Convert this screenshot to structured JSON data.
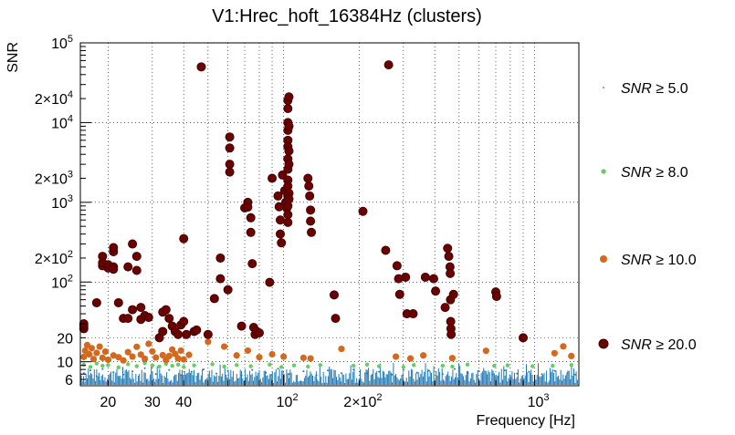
{
  "chart_data": {
    "type": "scatter",
    "title": "V1:Hrec_hoft_16384Hz (clusters)",
    "xlabel": "Frequency [Hz]",
    "ylabel": "SNR",
    "xscale": "log",
    "yscale": "log",
    "xlim": [
      15.5,
      1500
    ],
    "ylim": [
      5,
      100000
    ],
    "grid": true,
    "legend_position": "right",
    "x_ticks": [
      {
        "value": 20,
        "label": "20"
      },
      {
        "value": 30,
        "label": "30"
      },
      {
        "value": 40,
        "label": "40"
      },
      {
        "value": 100,
        "label": "10",
        "sup": "2"
      },
      {
        "value": 200,
        "label": "2×10",
        "sup": "2"
      },
      {
        "value": 1000,
        "label": "10",
        "sup": "3"
      }
    ],
    "y_ticks": [
      {
        "value": 6,
        "label": "6"
      },
      {
        "value": 10,
        "label": "10"
      },
      {
        "value": 20,
        "label": "20"
      },
      {
        "value": 100,
        "label": "10",
        "sup": "2"
      },
      {
        "value": 200,
        "label": "2×10",
        "sup": "2"
      },
      {
        "value": 1000,
        "label": "10",
        "sup": "3"
      },
      {
        "value": 2000,
        "label": "2×10",
        "sup": "3"
      },
      {
        "value": 10000,
        "label": "10",
        "sup": "4"
      },
      {
        "value": 20000,
        "label": "2×10",
        "sup": "4"
      },
      {
        "value": 100000,
        "label": "10",
        "sup": "5"
      }
    ],
    "series": [
      {
        "name": "SNR ≥ 5.0",
        "legend_prefix": "SNR",
        "legend_suffix": " ≥ 5.0",
        "color": "#1f78b4",
        "marker": "dot",
        "points": [
          [
            16,
            7.2
          ],
          [
            17,
            7.8
          ],
          [
            18,
            6.6
          ],
          [
            19,
            8.1
          ],
          [
            21,
            7.4
          ],
          [
            23,
            6.9
          ],
          [
            25,
            7.6
          ],
          [
            28,
            8.3
          ],
          [
            31,
            7.0
          ],
          [
            35,
            7.9
          ],
          [
            39,
            6.8
          ],
          [
            43,
            7.5
          ],
          [
            48,
            8.0
          ],
          [
            54,
            7.1
          ],
          [
            60,
            7.7
          ],
          [
            68,
            6.7
          ],
          [
            75,
            7.9
          ],
          [
            85,
            7.3
          ],
          [
            95,
            8.2
          ],
          [
            105,
            7.0
          ],
          [
            120,
            7.6
          ],
          [
            135,
            6.8
          ],
          [
            150,
            7.8
          ],
          [
            170,
            7.2
          ],
          [
            190,
            8.0
          ],
          [
            215,
            7.1
          ],
          [
            240,
            7.5
          ],
          [
            270,
            6.9
          ],
          [
            300,
            7.9
          ],
          [
            340,
            7.3
          ],
          [
            380,
            7.7
          ],
          [
            430,
            7.0
          ],
          [
            480,
            8.1
          ],
          [
            540,
            7.2
          ],
          [
            600,
            7.6
          ],
          [
            680,
            6.9
          ],
          [
            760,
            7.8
          ],
          [
            850,
            7.1
          ],
          [
            950,
            7.5
          ],
          [
            1070,
            7.0
          ],
          [
            1200,
            7.7
          ],
          [
            1350,
            7.2
          ],
          [
            1450,
            6.9
          ]
        ]
      },
      {
        "name": "SNR ≥ 8.0",
        "legend_prefix": "SNR",
        "legend_suffix": " ≥ 8.0",
        "color": "#66cc66",
        "marker": "small",
        "points": [
          [
            16,
            9.2
          ],
          [
            17,
            8.6
          ],
          [
            18,
            9.5
          ],
          [
            19,
            8.9
          ],
          [
            20,
            9.1
          ],
          [
            22,
            8.5
          ],
          [
            24,
            9.3
          ],
          [
            26,
            8.8
          ],
          [
            28,
            9.6
          ],
          [
            30,
            9.0
          ],
          [
            32,
            8.7
          ],
          [
            34,
            9.4
          ],
          [
            36,
            8.9
          ],
          [
            38,
            9.2
          ],
          [
            40,
            8.6
          ],
          [
            44,
            9.0
          ],
          [
            52,
            9.3
          ],
          [
            58,
            8.7
          ],
          [
            65,
            9.1
          ],
          [
            74,
            8.8
          ],
          [
            88,
            9.2
          ],
          [
            98,
            8.6
          ],
          [
            110,
            9.0
          ],
          [
            125,
            8.7
          ],
          [
            140,
            9.1
          ],
          [
            190,
            8.9
          ],
          [
            215,
            9.2
          ],
          [
            240,
            8.8
          ],
          [
            300,
            8.6
          ],
          [
            330,
            9.1
          ],
          [
            430,
            8.9
          ],
          [
            470,
            8.7
          ],
          [
            540,
            9.2
          ],
          [
            690,
            8.9
          ],
          [
            780,
            9.0
          ],
          [
            980,
            8.8
          ],
          [
            1180,
            8.9
          ],
          [
            1400,
            9.1
          ]
        ]
      },
      {
        "name": "SNR ≥ 10.0",
        "legend_prefix": "SNR",
        "legend_suffix": " ≥ 10.0",
        "color": "#d2691e",
        "marker": "medium",
        "points": [
          [
            16,
            11.5
          ],
          [
            16.2,
            13.8
          ],
          [
            16.5,
            16.2
          ],
          [
            16.8,
            12.4
          ],
          [
            17.2,
            14.8
          ],
          [
            17.5,
            10.8
          ],
          [
            18,
            12.9
          ],
          [
            18.5,
            15.5
          ],
          [
            19,
            11.2
          ],
          [
            19.5,
            13.4
          ],
          [
            20,
            10.6
          ],
          [
            21,
            12.0
          ],
          [
            22,
            11.4
          ],
          [
            23,
            10.4
          ],
          [
            24,
            13.2
          ],
          [
            25,
            11.6
          ],
          [
            26,
            15.4
          ],
          [
            27,
            12.3
          ],
          [
            28,
            10.9
          ],
          [
            29,
            16.8
          ],
          [
            30,
            13.5
          ],
          [
            31,
            11.3
          ],
          [
            33,
            12.1
          ],
          [
            34,
            10.5
          ],
          [
            35,
            11.8
          ],
          [
            36,
            14.2
          ],
          [
            37,
            12.5
          ],
          [
            38,
            11.0
          ],
          [
            39,
            13.8
          ],
          [
            40,
            10.7
          ],
          [
            42,
            12.2
          ],
          [
            50,
            17.8
          ],
          [
            58,
            15.5
          ],
          [
            65,
            12.0
          ],
          [
            72,
            13.8
          ],
          [
            80,
            11.4
          ],
          [
            90,
            12.4
          ],
          [
            100,
            11.6
          ],
          [
            120,
            11.2
          ],
          [
            128,
            11.0
          ],
          [
            170,
            14.5
          ],
          [
            280,
            11.6
          ],
          [
            320,
            11.0
          ],
          [
            360,
            12.0
          ],
          [
            470,
            11.1
          ],
          [
            640,
            13.7
          ],
          [
            1200,
            12.8
          ],
          [
            1300,
            15.6
          ],
          [
            1400,
            11.8
          ]
        ]
      },
      {
        "name": "SNR ≥ 20.0",
        "legend_prefix": "SNR",
        "legend_suffix": " ≥ 20.0",
        "color": "#6b0000",
        "marker": "large",
        "points": [
          [
            16,
            26
          ],
          [
            16,
            28
          ],
          [
            16,
            30
          ],
          [
            18,
            55
          ],
          [
            19,
            160
          ],
          [
            19,
            175
          ],
          [
            19,
            210
          ],
          [
            20,
            150
          ],
          [
            20,
            165
          ],
          [
            21,
            240
          ],
          [
            21,
            270
          ],
          [
            21,
            155
          ],
          [
            21,
            145
          ],
          [
            22,
            55
          ],
          [
            23,
            35
          ],
          [
            24,
            35
          ],
          [
            24,
            155
          ],
          [
            25,
            45
          ],
          [
            25,
            300
          ],
          [
            26,
            210
          ],
          [
            26,
            140
          ],
          [
            27,
            34
          ],
          [
            27,
            48
          ],
          [
            28,
            38
          ],
          [
            29,
            36
          ],
          [
            32,
            20
          ],
          [
            33,
            24
          ],
          [
            33,
            42
          ],
          [
            34,
            45
          ],
          [
            35,
            35
          ],
          [
            36,
            28
          ],
          [
            37,
            24
          ],
          [
            38,
            22
          ],
          [
            39,
            29
          ],
          [
            40,
            350
          ],
          [
            40,
            32
          ],
          [
            41,
            22
          ],
          [
            44,
            24
          ],
          [
            45,
            25
          ],
          [
            47,
            50000
          ],
          [
            50,
            22
          ],
          [
            53,
            62
          ],
          [
            56,
            200
          ],
          [
            56,
            110
          ],
          [
            60,
            80
          ],
          [
            61,
            6600
          ],
          [
            61,
            4800
          ],
          [
            61,
            3000
          ],
          [
            61,
            2400
          ],
          [
            68,
            28
          ],
          [
            70,
            850
          ],
          [
            72,
            1000
          ],
          [
            72,
            870
          ],
          [
            74,
            640
          ],
          [
            74,
            420
          ],
          [
            75,
            170
          ],
          [
            76,
            27
          ],
          [
            77,
            22
          ],
          [
            78,
            24
          ],
          [
            80,
            23
          ],
          [
            88,
            99
          ],
          [
            90,
            2000
          ],
          [
            95,
            1200
          ],
          [
            96,
            880
          ],
          [
            97,
            600
          ],
          [
            97,
            400
          ],
          [
            98,
            310
          ],
          [
            99,
            2200
          ],
          [
            101,
            1400
          ],
          [
            102,
            1000
          ],
          [
            103,
            850
          ],
          [
            104,
            19000
          ],
          [
            104,
            15000
          ],
          [
            104,
            10000
          ],
          [
            104,
            8000
          ],
          [
            104,
            6000
          ],
          [
            104,
            5000
          ],
          [
            104,
            3500
          ],
          [
            104,
            2600
          ],
          [
            104,
            1900
          ],
          [
            104,
            1600
          ],
          [
            104,
            1200
          ],
          [
            104,
            900
          ],
          [
            104,
            700
          ],
          [
            104,
            560
          ],
          [
            105,
            21000
          ],
          [
            105,
            9000
          ],
          [
            105,
            4400
          ],
          [
            105,
            3000
          ],
          [
            105,
            1300
          ],
          [
            105,
            1100
          ],
          [
            125,
            2000
          ],
          [
            126,
            1600
          ],
          [
            127,
            1200
          ],
          [
            128,
            800
          ],
          [
            128,
            580
          ],
          [
            129,
            420
          ],
          [
            159,
            69
          ],
          [
            161,
            35
          ],
          [
            207,
            770
          ],
          [
            255,
            250
          ],
          [
            262,
            53000
          ],
          [
            283,
            160
          ],
          [
            287,
            110
          ],
          [
            290,
            70
          ],
          [
            306,
            115
          ],
          [
            310,
            40
          ],
          [
            328,
            40
          ],
          [
            367,
            115
          ],
          [
            396,
            110
          ],
          [
            403,
            77
          ],
          [
            440,
            48
          ],
          [
            450,
            265
          ],
          [
            455,
            210
          ],
          [
            460,
            155
          ],
          [
            461,
            128
          ],
          [
            462,
            60
          ],
          [
            463,
            32
          ],
          [
            464,
            26
          ],
          [
            465,
            22
          ],
          [
            475,
            70
          ],
          [
            700,
            75
          ],
          [
            705,
            66
          ],
          [
            900,
            20
          ]
        ]
      }
    ]
  }
}
